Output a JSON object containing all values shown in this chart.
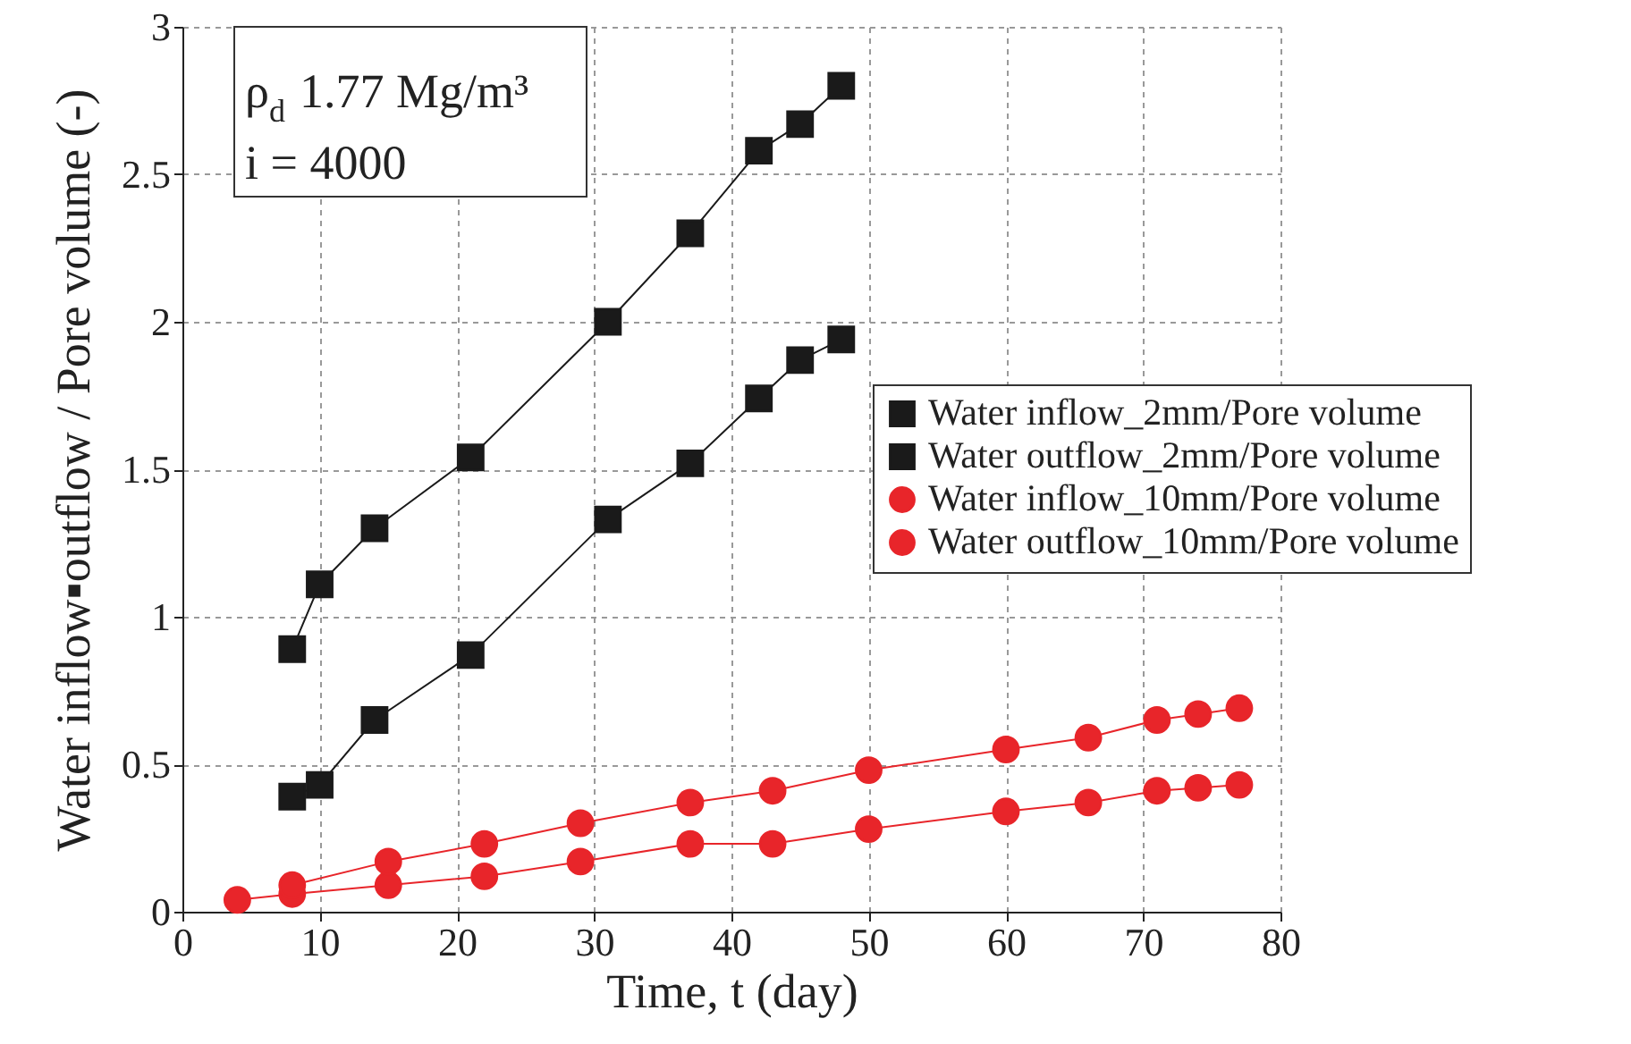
{
  "chart_data": {
    "type": "line",
    "xlabel": "Time, t (day)",
    "ylabel": "Water inflow▪outflow / Pore volume (-)",
    "annotations": [
      "ρ$_{d}$ 1.77 Mg/m³",
      "i = 4000"
    ],
    "xlim": [
      0,
      80
    ],
    "xticks": [
      0,
      10,
      20,
      30,
      40,
      50,
      60,
      70,
      80
    ],
    "ylim": [
      0,
      3
    ],
    "yticks": [
      0,
      0.5,
      1,
      1.5,
      2,
      2.5,
      3
    ],
    "grid": true,
    "legend": "right",
    "line_style": "solid",
    "series": [
      {
        "name": "Water inflow_2mm/Pore volume",
        "color": "#1a1a1a",
        "marker": "square",
        "x": [
          8,
          10,
          14,
          21,
          31,
          37,
          42,
          45,
          48
        ],
        "values": [
          0.89,
          1.11,
          1.3,
          1.54,
          2.0,
          2.3,
          2.58,
          2.67,
          2.8
        ]
      },
      {
        "name": "Water outflow_2mm/Pore volume",
        "color": "#1a1a1a",
        "marker": "square",
        "x": [
          8,
          10,
          14,
          21,
          31,
          37,
          42,
          45,
          48
        ],
        "values": [
          0.39,
          0.43,
          0.65,
          0.87,
          1.33,
          1.52,
          1.74,
          1.87,
          1.94
        ]
      },
      {
        "name": "Water inflow_10mm/Pore volume",
        "color": "#e8252a",
        "marker": "circle",
        "x": [
          8,
          15,
          22,
          29,
          37,
          43,
          50,
          60,
          66,
          71,
          74,
          77
        ],
        "values": [
          0.09,
          0.17,
          0.23,
          0.3,
          0.37,
          0.41,
          0.48,
          0.55,
          0.59,
          0.65,
          0.67,
          0.69
        ]
      },
      {
        "name": "Water outflow_10mm/Pore volume",
        "color": "#e8252a",
        "marker": "circle",
        "x": [
          4,
          8,
          15,
          22,
          29,
          37,
          43,
          50,
          60,
          66,
          71,
          74,
          77
        ],
        "values": [
          0.04,
          0.06,
          0.09,
          0.12,
          0.17,
          0.23,
          0.23,
          0.28,
          0.34,
          0.37,
          0.41,
          0.42,
          0.43
        ]
      }
    ]
  }
}
